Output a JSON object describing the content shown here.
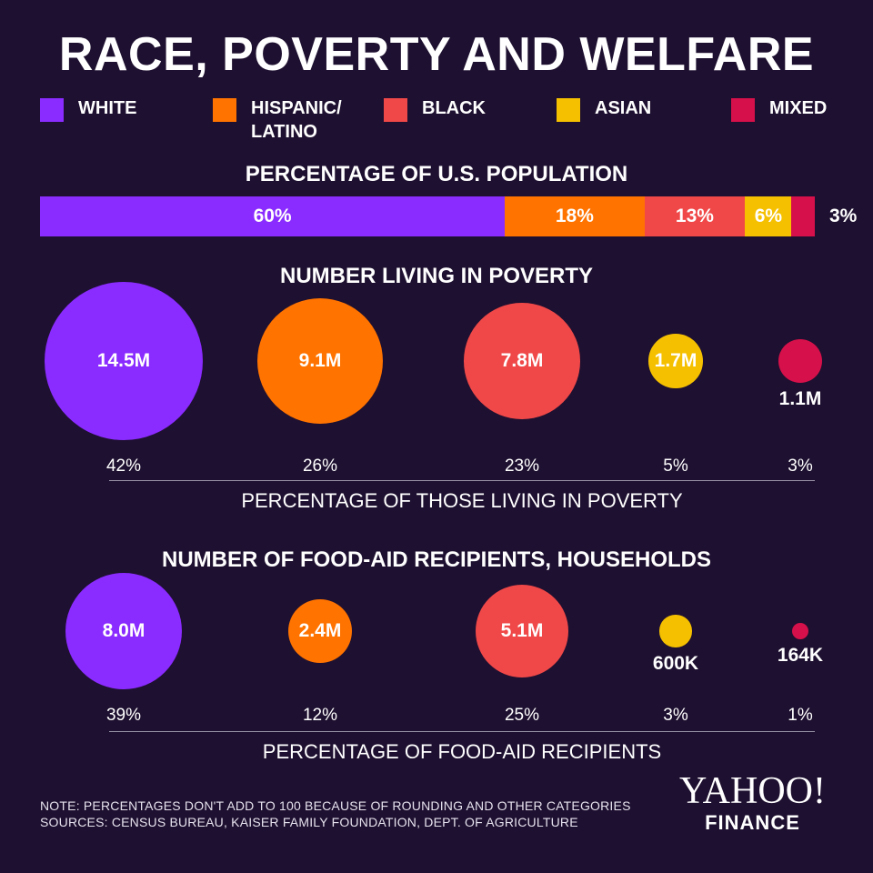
{
  "title": "RACE, POVERTY AND WELFARE",
  "legend": [
    {
      "label": "WHITE",
      "color": "#8a2bff"
    },
    {
      "label": "HISPANIC/\nLATINO",
      "color": "#ff7300"
    },
    {
      "label": "BLACK",
      "color": "#f04848"
    },
    {
      "label": "ASIAN",
      "color": "#f5c000"
    },
    {
      "label": "MIXED",
      "color": "#d6104a"
    }
  ],
  "chart_data": [
    {
      "type": "bar",
      "title": "PERCENTAGE OF U.S. POPULATION",
      "categories": [
        "WHITE",
        "HISPANIC/LATINO",
        "BLACK",
        "ASIAN",
        "MIXED"
      ],
      "values": [
        60,
        18,
        13,
        6,
        3
      ],
      "labels": [
        "60%",
        "18%",
        "13%",
        "6%",
        "3%"
      ],
      "stacked": true
    },
    {
      "type": "scatter",
      "title": "NUMBER LIVING IN POVERTY",
      "categories": [
        "WHITE",
        "HISPANIC/LATINO",
        "BLACK",
        "ASIAN",
        "MIXED"
      ],
      "values": [
        14.5,
        9.1,
        7.8,
        1.7,
        1.1
      ],
      "value_labels": [
        "14.5M",
        "9.1M",
        "7.8M",
        "1.7M",
        "1.1M"
      ],
      "percent_labels": [
        "42%",
        "26%",
        "23%",
        "5%",
        "3%"
      ],
      "xlabel": "PERCENTAGE OF THOSE LIVING IN POVERTY"
    },
    {
      "type": "scatter",
      "title": "NUMBER OF FOOD-AID RECIPIENTS, HOUSEHOLDS",
      "categories": [
        "WHITE",
        "HISPANIC/LATINO",
        "BLACK",
        "ASIAN",
        "MIXED"
      ],
      "values": [
        8.0,
        2.4,
        5.1,
        0.6,
        0.164
      ],
      "value_labels": [
        "8.0M",
        "2.4M",
        "5.1M",
        "600K",
        "164K"
      ],
      "percent_labels": [
        "39%",
        "12%",
        "25%",
        "3%",
        "1%"
      ],
      "xlabel": "PERCENTAGE OF FOOD-AID RECIPIENTS"
    }
  ],
  "note": "NOTE: PERCENTAGES DON'T ADD TO 100 BECAUSE OF ROUNDING AND OTHER CATEGORIES",
  "sources": "SOURCES: CENSUS BUREAU, KAISER FAMILY FOUNDATION, DEPT. OF AGRICULTURE",
  "logo": {
    "main": "YAHOO!",
    "sub": "FINANCE"
  }
}
